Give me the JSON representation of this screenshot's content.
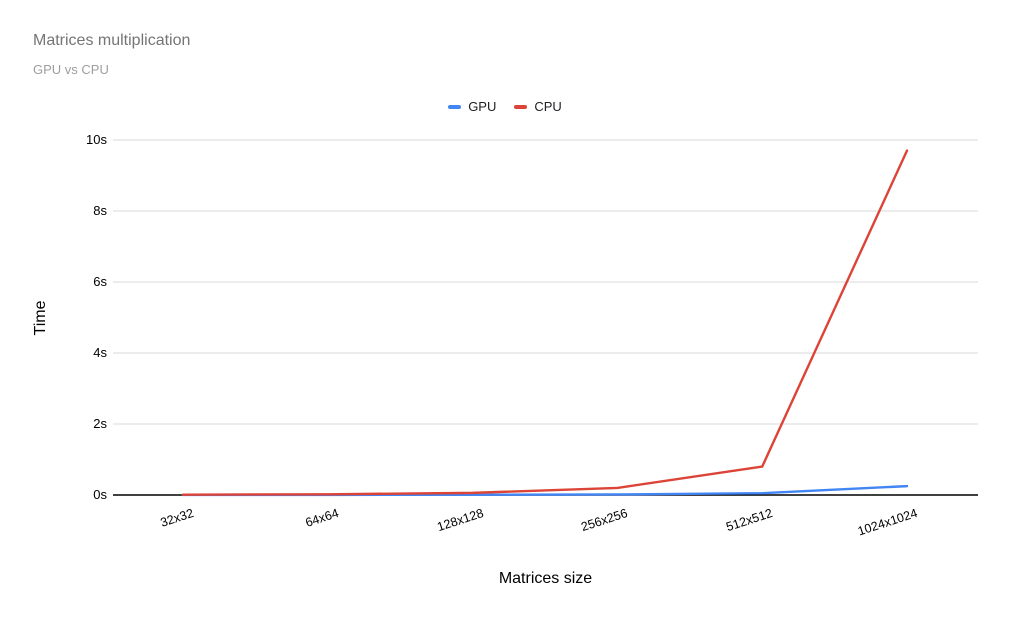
{
  "chart_data": {
    "type": "line",
    "title": "Matrices multiplication",
    "subtitle": "GPU vs CPU",
    "xlabel": "Matrices size",
    "ylabel": "Time",
    "categories": [
      "32x32",
      "64x64",
      "128x128",
      "256x256",
      "512x512",
      "1024x1024"
    ],
    "series": [
      {
        "name": "GPU",
        "color": "#4285f4",
        "values": [
          0.002,
          0.003,
          0.006,
          0.015,
          0.05,
          0.25
        ]
      },
      {
        "name": "CPU",
        "color": "#db4437",
        "values": [
          0.01,
          0.02,
          0.06,
          0.2,
          0.8,
          9.7
        ]
      }
    ],
    "ylim": [
      0,
      10
    ],
    "yticks": [
      0,
      2,
      4,
      6,
      8,
      10
    ],
    "ytick_labels": [
      "0s",
      "2s",
      "4s",
      "6s",
      "8s",
      "10s"
    ],
    "grid": true,
    "legend_position": "top-center",
    "colors": {
      "title": "#757575",
      "subtitle": "#9e9e9e",
      "axis_line": "#000000",
      "gridline": "#d9d9d9",
      "tick_label": "#000000"
    }
  }
}
